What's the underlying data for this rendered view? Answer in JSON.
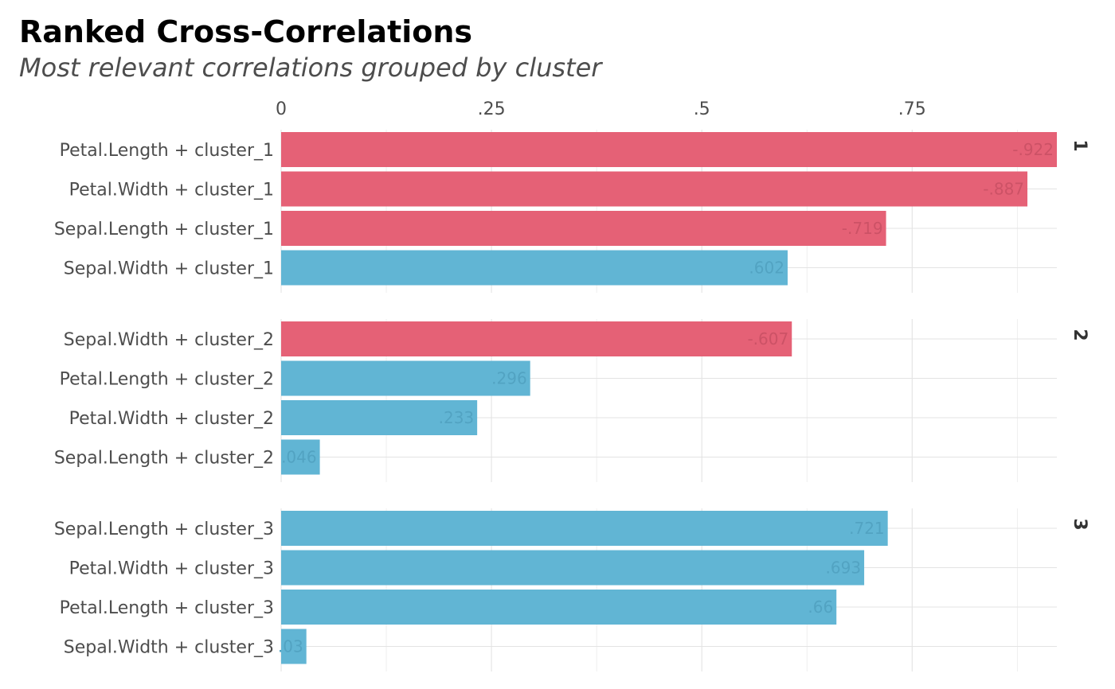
{
  "chart_data": {
    "type": "bar",
    "orientation": "horizontal",
    "title": "Ranked Cross-Correlations",
    "subtitle": "Most relevant correlations grouped by cluster",
    "xlim": [
      0,
      0.922
    ],
    "x_ticks": [
      {
        "value": 0,
        "label": "0"
      },
      {
        "value": 0.25,
        "label": ".25"
      },
      {
        "value": 0.5,
        "label": ".5"
      },
      {
        "value": 0.75,
        "label": ".75"
      }
    ],
    "x_axis_position": "top",
    "grid": true,
    "colors": {
      "negative": "#E56176",
      "positive": "#61B5D4"
    },
    "facets": [
      {
        "strip": "1",
        "bars": [
          {
            "category": "Petal.Length + cluster_1",
            "value": -0.922,
            "label": "-.922"
          },
          {
            "category": "Petal.Width + cluster_1",
            "value": -0.887,
            "label": "-.887"
          },
          {
            "category": "Sepal.Length + cluster_1",
            "value": -0.719,
            "label": "-.719"
          },
          {
            "category": "Sepal.Width + cluster_1",
            "value": 0.602,
            "label": ".602"
          }
        ]
      },
      {
        "strip": "2",
        "bars": [
          {
            "category": "Sepal.Width + cluster_2",
            "value": -0.607,
            "label": "-.607"
          },
          {
            "category": "Petal.Length + cluster_2",
            "value": 0.296,
            "label": ".296"
          },
          {
            "category": "Petal.Width + cluster_2",
            "value": 0.233,
            "label": ".233"
          },
          {
            "category": "Sepal.Length + cluster_2",
            "value": 0.046,
            "label": ".046"
          }
        ]
      },
      {
        "strip": "3",
        "bars": [
          {
            "category": "Sepal.Length + cluster_3",
            "value": 0.721,
            "label": ".721"
          },
          {
            "category": "Petal.Width + cluster_3",
            "value": 0.693,
            "label": ".693"
          },
          {
            "category": "Petal.Length + cluster_3",
            "value": 0.66,
            "label": ".66"
          },
          {
            "category": "Sepal.Width + cluster_3",
            "value": 0.03,
            "label": ".03"
          }
        ]
      }
    ]
  }
}
